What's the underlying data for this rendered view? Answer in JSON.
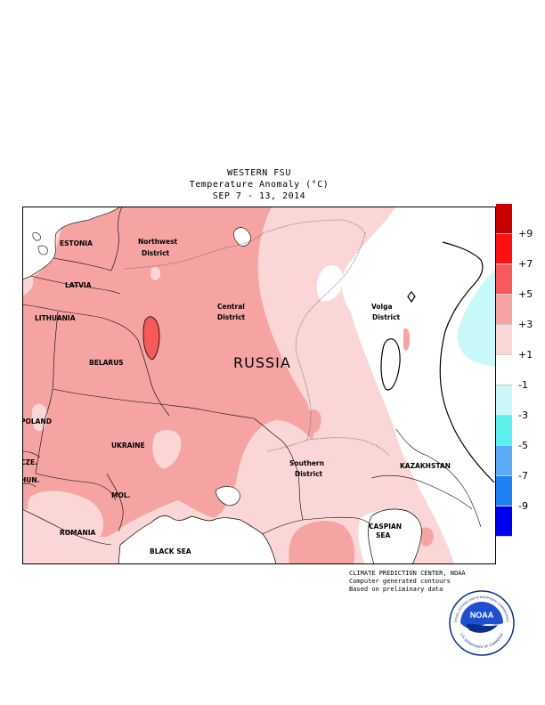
{
  "header": {
    "line1": "WESTERN FSU",
    "line2": "Temperature Anomaly (°C)",
    "line3": "SEP 7 - 13, 2014"
  },
  "map_labels": {
    "estonia": "ESTONIA",
    "latvia": "LATVIA",
    "lithuania": "LITHUANIA",
    "belarus": "BELARUS",
    "poland": "POLAND",
    "ukraine": "UKRAINE",
    "czech": "CZE.",
    "hungary": "HUN.",
    "moldova": "MOL.",
    "romania": "ROMANIA",
    "black_sea": "BLACK SEA",
    "russia": "RUSSIA",
    "northwest_1": "Northwest",
    "northwest_2": "District",
    "central_1": "Central",
    "central_2": "District",
    "volga_1": "Volga",
    "volga_2": "District",
    "southern_1": "Southern",
    "southern_2": "District",
    "kazakhstan": "KAZAKHSTAN",
    "caspian_1": "CASPIAN",
    "caspian_2": "SEA"
  },
  "colorbar": {
    "colors": [
      "#c80000",
      "#ff1010",
      "#f85a5a",
      "#f5a3a3",
      "#fbd6d6",
      "#ffffff",
      "#c8f8f8",
      "#5cf0f0",
      "#5aaaf5",
      "#1e82f5",
      "#0000f0"
    ],
    "ticks": [
      "+9",
      "+7",
      "+5",
      "+3",
      "+1",
      "-1",
      "-3",
      "-5",
      "-7",
      "-9"
    ]
  },
  "credits": {
    "line1": "CLIMATE PREDICTION CENTER, NOAA",
    "line2": "Computer generated contours",
    "line3": "Based on preliminary data"
  },
  "logo": {
    "text": "NOAA",
    "ring_text_top": "NATIONAL OCEANIC AND ATMOSPHERIC ADMINISTRATION",
    "ring_text_bottom": "U.S. DEPARTMENT OF COMMERCE"
  }
}
